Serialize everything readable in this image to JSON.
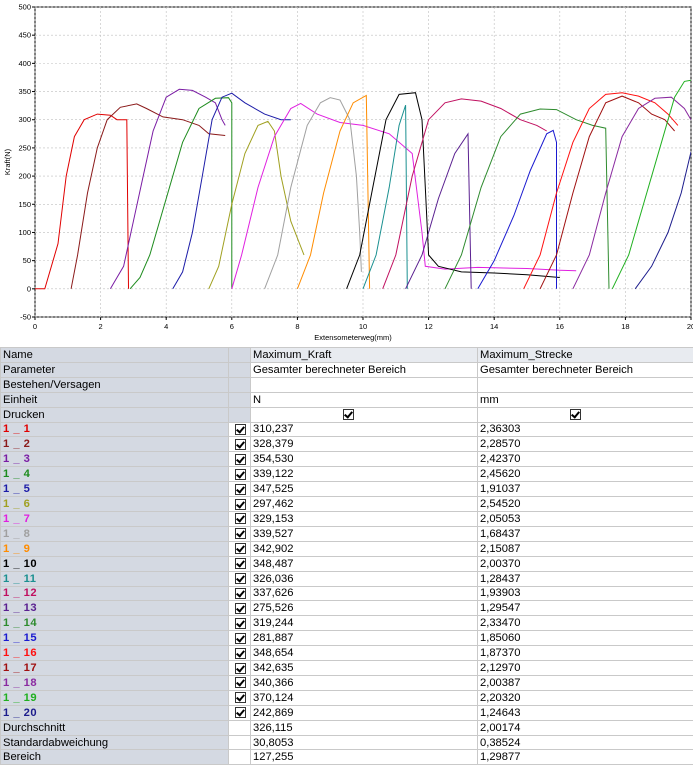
{
  "chart_data": {
    "type": "line",
    "xlabel": "Extensometerweg(mm)",
    "ylabel": "Kraft(N)",
    "xlim": [
      0,
      20
    ],
    "ylim": [
      -50,
      500
    ],
    "xticks": [
      "0",
      "2",
      "4",
      "6",
      "8",
      "10",
      "12",
      "14",
      "16",
      "18",
      "20"
    ],
    "yticks": [
      "-50",
      "0",
      "50",
      "100",
      "150",
      "200",
      "250",
      "300",
      "350",
      "400",
      "450",
      "500"
    ],
    "grid": true,
    "series": [
      {
        "color": "#e00000",
        "points": [
          [
            0,
            0
          ],
          [
            0.3,
            0
          ],
          [
            0.7,
            80
          ],
          [
            0.95,
            200
          ],
          [
            1.2,
            270
          ],
          [
            1.5,
            300
          ],
          [
            1.9,
            310
          ],
          [
            2.3,
            308
          ],
          [
            2.5,
            300
          ],
          [
            2.8,
            300
          ],
          [
            2.85,
            0
          ]
        ]
      },
      {
        "color": "#8b1a1a",
        "points": [
          [
            1.1,
            0
          ],
          [
            1.3,
            60
          ],
          [
            1.6,
            170
          ],
          [
            1.9,
            250
          ],
          [
            2.2,
            300
          ],
          [
            2.6,
            322
          ],
          [
            3.1,
            328
          ],
          [
            3.4,
            320
          ],
          [
            3.9,
            305
          ],
          [
            4.5,
            300
          ],
          [
            5.0,
            290
          ],
          [
            5.3,
            275
          ],
          [
            5.8,
            272
          ]
        ]
      },
      {
        "color": "#7a1ca4",
        "points": [
          [
            2.3,
            0
          ],
          [
            2.5,
            20
          ],
          [
            2.7,
            40
          ],
          [
            3.0,
            120
          ],
          [
            3.3,
            200
          ],
          [
            3.6,
            280
          ],
          [
            4.0,
            340
          ],
          [
            4.4,
            354
          ],
          [
            4.8,
            352
          ],
          [
            5.2,
            340
          ],
          [
            5.5,
            330
          ],
          [
            5.7,
            300
          ],
          [
            5.8,
            290
          ]
        ]
      },
      {
        "color": "#1e8c1e",
        "points": [
          [
            2.9,
            0
          ],
          [
            3.2,
            20
          ],
          [
            3.5,
            60
          ],
          [
            4.0,
            160
          ],
          [
            4.5,
            260
          ],
          [
            5.0,
            320
          ],
          [
            5.5,
            338
          ],
          [
            5.9,
            339
          ],
          [
            6.0,
            330
          ],
          [
            6.0,
            0
          ]
        ]
      },
      {
        "color": "#1c1ca8",
        "points": [
          [
            4.2,
            0
          ],
          [
            4.5,
            30
          ],
          [
            4.8,
            100
          ],
          [
            5.1,
            200
          ],
          [
            5.4,
            300
          ],
          [
            5.7,
            340
          ],
          [
            6.0,
            347
          ],
          [
            6.4,
            330
          ],
          [
            7.0,
            310
          ],
          [
            7.5,
            300
          ],
          [
            7.8,
            300
          ]
        ]
      },
      {
        "color": "#a0a020",
        "points": [
          [
            5.3,
            0
          ],
          [
            5.6,
            40
          ],
          [
            6.0,
            150
          ],
          [
            6.4,
            240
          ],
          [
            6.8,
            290
          ],
          [
            7.1,
            297
          ],
          [
            7.3,
            280
          ],
          [
            7.5,
            200
          ],
          [
            7.8,
            120
          ],
          [
            8.2,
            60
          ]
        ]
      },
      {
        "color": "#e020e0",
        "points": [
          [
            6.0,
            0
          ],
          [
            6.3,
            60
          ],
          [
            6.8,
            180
          ],
          [
            7.3,
            270
          ],
          [
            7.8,
            320
          ],
          [
            8.1,
            329
          ],
          [
            8.6,
            310
          ],
          [
            9.3,
            295
          ],
          [
            10.0,
            290
          ],
          [
            10.8,
            275
          ],
          [
            11.5,
            240
          ],
          [
            11.8,
            100
          ],
          [
            11.9,
            40
          ],
          [
            12.5,
            35
          ],
          [
            13.5,
            38
          ],
          [
            15.0,
            36
          ],
          [
            16.0,
            33
          ],
          [
            16.5,
            32
          ]
        ]
      },
      {
        "color": "#a0a0a0",
        "points": [
          [
            7.0,
            0
          ],
          [
            7.4,
            60
          ],
          [
            7.8,
            180
          ],
          [
            8.3,
            290
          ],
          [
            8.7,
            330
          ],
          [
            9.0,
            339
          ],
          [
            9.3,
            335
          ],
          [
            9.6,
            300
          ],
          [
            9.8,
            200
          ],
          [
            9.9,
            100
          ],
          [
            9.95,
            30
          ]
        ]
      },
      {
        "color": "#ff8c00",
        "points": [
          [
            8.0,
            0
          ],
          [
            8.4,
            60
          ],
          [
            8.8,
            170
          ],
          [
            9.3,
            280
          ],
          [
            9.7,
            330
          ],
          [
            10.1,
            343
          ],
          [
            10.2,
            0
          ]
        ]
      },
      {
        "color": "#000000",
        "points": [
          [
            9.5,
            0
          ],
          [
            9.9,
            60
          ],
          [
            10.3,
            180
          ],
          [
            10.7,
            300
          ],
          [
            11.1,
            345
          ],
          [
            11.6,
            348
          ],
          [
            11.8,
            300
          ],
          [
            12.0,
            60
          ],
          [
            12.3,
            40
          ],
          [
            13.0,
            30
          ],
          [
            14.0,
            28
          ],
          [
            15.0,
            25
          ],
          [
            16.0,
            20
          ]
        ]
      },
      {
        "color": "#1a9090",
        "points": [
          [
            10.0,
            0
          ],
          [
            10.4,
            60
          ],
          [
            10.8,
            180
          ],
          [
            11.1,
            290
          ],
          [
            11.3,
            326
          ],
          [
            11.35,
            0
          ]
        ]
      },
      {
        "color": "#c01060",
        "points": [
          [
            10.6,
            0
          ],
          [
            11.0,
            60
          ],
          [
            11.5,
            200
          ],
          [
            12.0,
            300
          ],
          [
            12.5,
            330
          ],
          [
            13.0,
            337
          ],
          [
            13.6,
            333
          ],
          [
            14.2,
            320
          ],
          [
            14.8,
            300
          ],
          [
            15.3,
            290
          ],
          [
            15.6,
            280
          ]
        ]
      },
      {
        "color": "#5a2090",
        "points": [
          [
            11.3,
            0
          ],
          [
            11.8,
            60
          ],
          [
            12.3,
            160
          ],
          [
            12.8,
            240
          ],
          [
            13.2,
            275
          ],
          [
            13.3,
            0
          ]
        ]
      },
      {
        "color": "#2e8b2e",
        "points": [
          [
            12.5,
            0
          ],
          [
            13.0,
            60
          ],
          [
            13.6,
            180
          ],
          [
            14.2,
            270
          ],
          [
            14.8,
            310
          ],
          [
            15.4,
            319
          ],
          [
            15.9,
            318
          ],
          [
            16.5,
            300
          ],
          [
            17.0,
            290
          ],
          [
            17.4,
            285
          ],
          [
            17.5,
            0
          ]
        ]
      },
      {
        "color": "#1a1ad0",
        "points": [
          [
            13.5,
            0
          ],
          [
            14.0,
            50
          ],
          [
            14.6,
            130
          ],
          [
            15.1,
            210
          ],
          [
            15.6,
            275
          ],
          [
            15.8,
            281
          ],
          [
            15.9,
            260
          ],
          [
            15.9,
            0
          ]
        ]
      },
      {
        "color": "#ff1010",
        "points": [
          [
            14.9,
            0
          ],
          [
            15.4,
            60
          ],
          [
            15.9,
            170
          ],
          [
            16.4,
            260
          ],
          [
            16.9,
            320
          ],
          [
            17.4,
            345
          ],
          [
            17.9,
            348
          ],
          [
            18.4,
            342
          ],
          [
            18.9,
            330
          ],
          [
            19.3,
            310
          ],
          [
            19.6,
            290
          ]
        ]
      },
      {
        "color": "#a01010",
        "points": [
          [
            15.4,
            0
          ],
          [
            15.9,
            60
          ],
          [
            16.4,
            170
          ],
          [
            16.9,
            270
          ],
          [
            17.4,
            330
          ],
          [
            17.9,
            342
          ],
          [
            18.4,
            330
          ],
          [
            18.8,
            310
          ],
          [
            19.2,
            300
          ],
          [
            19.5,
            280
          ]
        ]
      },
      {
        "color": "#8a2aa0",
        "points": [
          [
            16.4,
            0
          ],
          [
            16.9,
            60
          ],
          [
            17.4,
            170
          ],
          [
            17.9,
            270
          ],
          [
            18.4,
            320
          ],
          [
            18.9,
            338
          ],
          [
            19.4,
            340
          ],
          [
            19.8,
            320
          ],
          [
            20.0,
            300
          ]
        ]
      },
      {
        "color": "#20b020",
        "points": [
          [
            17.6,
            0
          ],
          [
            18.1,
            60
          ],
          [
            18.6,
            160
          ],
          [
            19.1,
            260
          ],
          [
            19.5,
            340
          ],
          [
            19.8,
            368
          ],
          [
            20.0,
            370
          ]
        ]
      },
      {
        "color": "#1c1c8c",
        "points": [
          [
            18.3,
            0
          ],
          [
            18.8,
            40
          ],
          [
            19.3,
            100
          ],
          [
            19.7,
            170
          ],
          [
            20.0,
            243
          ]
        ]
      }
    ]
  },
  "table": {
    "col_name": "Name",
    "col_v1": "Maximum_Kraft",
    "col_v2": "Maximum_Strecke",
    "meta_rows": [
      {
        "label": "Parameter",
        "v1": "Gesamter berechneter Bereich",
        "v2": "Gesamter berechneter Bereich"
      },
      {
        "label": "Bestehen/Versagen",
        "v1": "",
        "v2": ""
      },
      {
        "label": "Einheit",
        "v1": "N",
        "v2": "mm"
      },
      {
        "label": "Drucken",
        "v1": "",
        "v2": ""
      }
    ],
    "samples": [
      {
        "label": "1 _ 1",
        "color": "#e00000",
        "v1": "310,237",
        "v2": "2,36303"
      },
      {
        "label": "1 _ 2",
        "color": "#8b1a1a",
        "v1": "328,379",
        "v2": "2,28570"
      },
      {
        "label": "1 _ 3",
        "color": "#7a1ca4",
        "v1": "354,530",
        "v2": "2,42370"
      },
      {
        "label": "1 _ 4",
        "color": "#1e8c1e",
        "v1": "339,122",
        "v2": "2,45620"
      },
      {
        "label": "1 _ 5",
        "color": "#1c1ca8",
        "v1": "347,525",
        "v2": "1,91037"
      },
      {
        "label": "1 _ 6",
        "color": "#a0a020",
        "v1": "297,462",
        "v2": "2,54520"
      },
      {
        "label": "1 _ 7",
        "color": "#e020e0",
        "v1": "329,153",
        "v2": "2,05053"
      },
      {
        "label": "1 _ 8",
        "color": "#a0a0a0",
        "v1": "339,527",
        "v2": "1,68437"
      },
      {
        "label": "1 _ 9",
        "color": "#ff8c00",
        "v1": "342,902",
        "v2": "2,15087"
      },
      {
        "label": "1 _ 10",
        "color": "#000000",
        "v1": "348,487",
        "v2": "2,00370"
      },
      {
        "label": "1 _ 11",
        "color": "#1a9090",
        "v1": "326,036",
        "v2": "1,28437"
      },
      {
        "label": "1 _ 12",
        "color": "#c01060",
        "v1": "337,626",
        "v2": "1,93903"
      },
      {
        "label": "1 _ 13",
        "color": "#5a2090",
        "v1": "275,526",
        "v2": "1,29547"
      },
      {
        "label": "1 _ 14",
        "color": "#2e8b2e",
        "v1": "319,244",
        "v2": "2,33470"
      },
      {
        "label": "1 _ 15",
        "color": "#1a1ad0",
        "v1": "281,887",
        "v2": "1,85060"
      },
      {
        "label": "1 _ 16",
        "color": "#ff1010",
        "v1": "348,654",
        "v2": "1,87370"
      },
      {
        "label": "1 _ 17",
        "color": "#a01010",
        "v1": "342,635",
        "v2": "2,12970"
      },
      {
        "label": "1 _ 18",
        "color": "#8a2aa0",
        "v1": "340,366",
        "v2": "2,00387"
      },
      {
        "label": "1 _ 19",
        "color": "#20b020",
        "v1": "370,124",
        "v2": "2,20320"
      },
      {
        "label": "1 _ 20",
        "color": "#1c1c8c",
        "v1": "242,869",
        "v2": "1,24643"
      }
    ],
    "stats": [
      {
        "label": "Durchschnitt",
        "v1": "326,115",
        "v2": "2,00174"
      },
      {
        "label": "Standardabweichung",
        "v1": "30,8053",
        "v2": "0,38524"
      },
      {
        "label": "Bereich",
        "v1": "127,255",
        "v2": "1,29877"
      }
    ]
  }
}
